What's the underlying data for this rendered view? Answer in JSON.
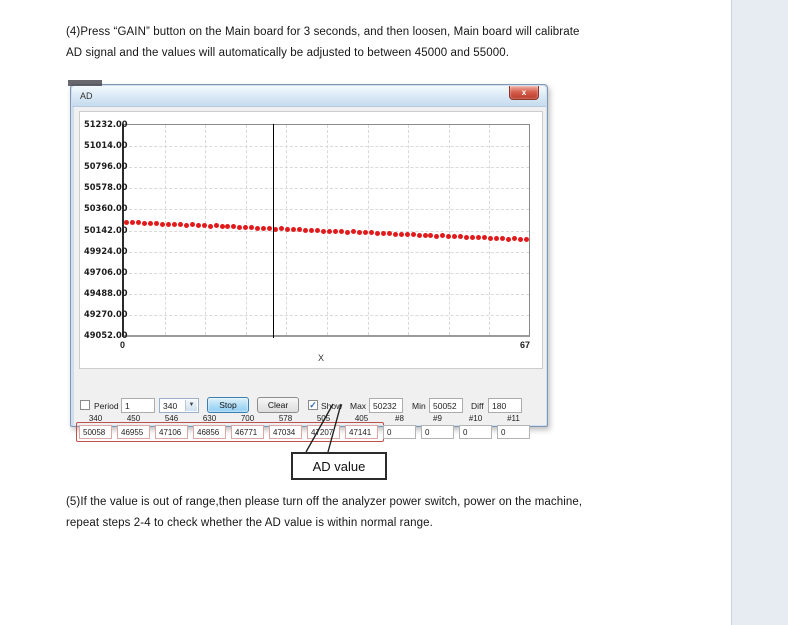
{
  "document": {
    "para4": "(4)Press “GAIN”  button on the Main board for 3 seconds, and then loosen, Main board will calibrate AD signal and the values will automatically be adjusted to between 45000 and 55000.",
    "para5": "(5)If the value is out of range,then please turn off the analyzer power switch, power on the machine, repeat steps 2-4 to check whether the AD value is within normal range."
  },
  "window": {
    "title": "AD",
    "close_glyph": "x"
  },
  "controls": {
    "period_label": "Period",
    "period_value": "1",
    "rate_value": "340",
    "stop_label": "Stop",
    "clear_label": "Clear",
    "show_label": "Show",
    "show_checked": "✓",
    "max_label": "Max",
    "max_value": "50232",
    "min_label": "Min",
    "min_value": "50052",
    "diff_label": "Diff",
    "diff_value": "180"
  },
  "channels": {
    "headers": [
      "340",
      "450",
      "546",
      "630",
      "700",
      "578",
      "505",
      "405",
      "#8",
      "#9",
      "#10",
      "#11"
    ],
    "values": [
      "50058",
      "46955",
      "47106",
      "46856",
      "46771",
      "47034",
      "47207",
      "47141",
      "0",
      "0",
      "0",
      "0"
    ],
    "highlighted_count": 8
  },
  "callout": {
    "label": "AD value"
  },
  "chart_data": {
    "type": "scatter",
    "title": "",
    "xlabel": "X",
    "ylabel": "",
    "xlim": [
      0,
      67
    ],
    "x_min_label": "0",
    "x_max_label": "67",
    "ylim": [
      49052,
      51232
    ],
    "y_ticks": [
      "51232.00",
      "51014.00",
      "50796.00",
      "50578.00",
      "50360.00",
      "50142.00",
      "49924.00",
      "49706.00",
      "49488.00",
      "49270.00",
      "49052.00"
    ],
    "grid": true,
    "legend": "none",
    "cursor_x": 25,
    "series": [
      {
        "name": "AD value",
        "color": "#e11b1b",
        "values": [
          50232,
          50226,
          50228,
          50222,
          50218,
          50220,
          50214,
          50210,
          50212,
          50206,
          50202,
          50204,
          50198,
          50196,
          50192,
          50194,
          50188,
          50184,
          50186,
          50180,
          50176,
          50178,
          50172,
          50170,
          50166,
          50162,
          50164,
          50158,
          50154,
          50156,
          50150,
          50146,
          50148,
          50142,
          50138,
          50140,
          50134,
          50130,
          50132,
          50126,
          50122,
          50124,
          50118,
          50114,
          50116,
          50110,
          50106,
          50108,
          50102,
          50098,
          50100,
          50094,
          50090,
          50092,
          50086,
          50082,
          50084,
          50078,
          50074,
          50076,
          50070,
          50066,
          50068,
          50062,
          50058,
          50060,
          50054,
          50052
        ]
      }
    ]
  },
  "colors": {
    "point_red": "#e11b1b",
    "highlight_red": "#c0504d",
    "titlebar_blue": "#c6dbee",
    "page_band": "#e7ebf2"
  }
}
